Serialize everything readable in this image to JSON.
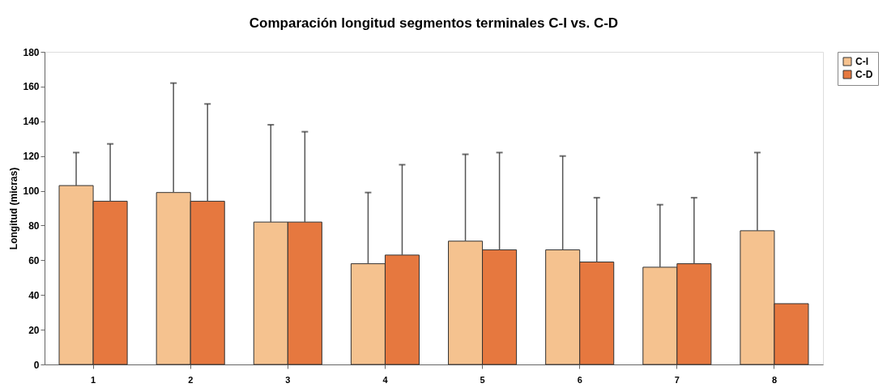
{
  "chart_data": {
    "type": "bar",
    "title": "Comparación longitud segmentos terminales C-I vs. C-D",
    "ylabel": "Longitud (micras)",
    "categories": [
      "1",
      "2",
      "3",
      "4",
      "5",
      "6",
      "7",
      "8"
    ],
    "series": [
      {
        "name": "C-I",
        "color": "#f5c28f",
        "values": [
          103,
          99,
          82,
          58,
          71,
          66,
          56,
          77
        ],
        "errors": [
          [
            103,
            122
          ],
          [
            99,
            162
          ],
          [
            82,
            138
          ],
          [
            58,
            99
          ],
          [
            71,
            121
          ],
          [
            66,
            120
          ],
          [
            56,
            92
          ],
          [
            77,
            122
          ]
        ]
      },
      {
        "name": "C-D",
        "color": "#e6783f",
        "values": [
          94,
          94,
          82,
          63,
          66,
          59,
          58,
          35
        ],
        "errors": [
          [
            94,
            127
          ],
          [
            94,
            150
          ],
          [
            82,
            134
          ],
          [
            63,
            115
          ],
          [
            66,
            122
          ],
          [
            59,
            96
          ],
          [
            58,
            96
          ],
          null
        ]
      }
    ],
    "ylim": [
      0,
      180
    ],
    "yticks": [
      0,
      20,
      40,
      60,
      80,
      100,
      120,
      140,
      160,
      180
    ],
    "grid": false,
    "legend": "right"
  }
}
